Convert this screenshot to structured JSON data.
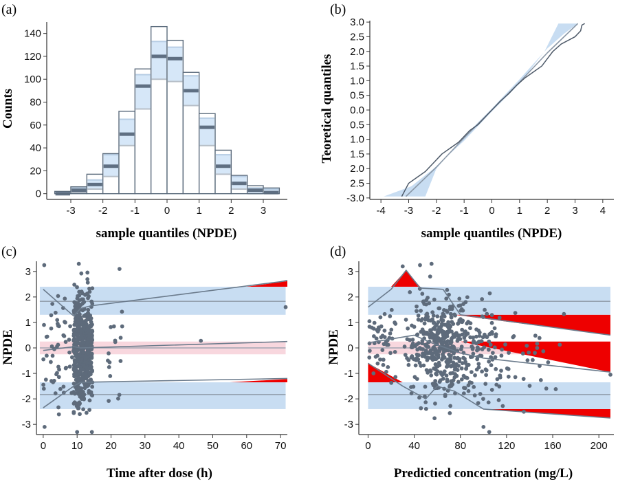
{
  "chart_data": [
    {
      "id": "a",
      "panel_label": "(a)",
      "type": "bar",
      "xlabel": "sample quantiles (NPDE)",
      "ylabel": "Counts",
      "xlim": [
        -3.75,
        3.75
      ],
      "ylim": [
        -5,
        150
      ],
      "x_ticks": [
        "-3",
        "-2",
        "-1",
        "0",
        "1",
        "2",
        "3"
      ],
      "y_ticks": [
        "0",
        "20",
        "40",
        "60",
        "80",
        "100",
        "120",
        "140"
      ],
      "bin_edges": [
        -3.5,
        -3.0,
        -2.5,
        -2.0,
        -1.5,
        -1.0,
        -0.5,
        0.0,
        0.5,
        1.0,
        1.5,
        2.0,
        2.5,
        3.0,
        3.5
      ],
      "series": [
        {
          "name": "observed counts",
          "values": [
            2,
            6,
            17,
            35,
            72,
            109,
            146,
            134,
            106,
            70,
            38,
            16,
            7,
            5
          ]
        },
        {
          "name": "band upper",
          "values": [
            1,
            5,
            12,
            34,
            65,
            104,
            133,
            128,
            103,
            66,
            34,
            15,
            5,
            4
          ]
        },
        {
          "name": "band lower",
          "values": [
            -1,
            1,
            4,
            15,
            42,
            74,
            100,
            98,
            77,
            42,
            17,
            4,
            0,
            0
          ]
        },
        {
          "name": "band median",
          "values": [
            0,
            3,
            8,
            24,
            52,
            94,
            120,
            118,
            90,
            58,
            24,
            9,
            3,
            1
          ]
        }
      ]
    },
    {
      "id": "b",
      "panel_label": "(b)",
      "type": "line",
      "xlabel": "sample quantiles (NPDE)",
      "ylabel": "Teoretical quantiles",
      "xlim": [
        -4.4,
        4.4
      ],
      "ylim": [
        -3.05,
        3.05
      ],
      "x_ticks": [
        "-4",
        "-3",
        "-2",
        "-1",
        "0",
        "1",
        "2",
        "3",
        "4"
      ],
      "y_ticks": [
        "-3.0",
        "2.5",
        "2.0",
        "1.5",
        "1.0",
        "0.5",
        "0.0",
        "0.5",
        "1.0",
        "1.5",
        "2.0",
        "2.5",
        "3.0"
      ],
      "series": [
        {
          "name": "band upper",
          "x": [
            -2.4,
            -2.0,
            -1.0,
            0.0,
            1.0,
            2.0,
            2.6,
            3.1,
            4.0
          ],
          "y": [
            -2.95,
            -2.0,
            -0.9,
            0.05,
            1.05,
            2.1,
            2.6,
            2.95,
            2.95
          ]
        },
        {
          "name": "band lower",
          "x": [
            -3.9,
            -2.9,
            -2.1,
            -1.0,
            0.0,
            1.0,
            1.9,
            2.4,
            2.5
          ],
          "y": [
            -2.95,
            -2.6,
            -2.0,
            -1.05,
            -0.05,
            0.9,
            2.0,
            2.95,
            2.95
          ]
        },
        {
          "name": "theoretical line",
          "x": [
            -3.1,
            -2.0,
            -1.0,
            0.0,
            1.0,
            2.0,
            3.1
          ],
          "y": [
            -2.95,
            -1.95,
            -0.95,
            0.0,
            0.95,
            1.95,
            2.95
          ]
        },
        {
          "name": "observed quantiles",
          "x": [
            -3.25,
            -3.0,
            -2.7,
            -2.4,
            -2.2,
            -2.0,
            -1.8,
            -1.5,
            -1.2,
            -1.0,
            -0.8,
            -0.5,
            -0.2,
            0.0,
            0.3,
            0.6,
            0.9,
            1.2,
            1.5,
            1.8,
            2.0,
            2.2,
            2.5,
            2.8,
            3.0,
            3.2,
            3.25,
            3.35
          ],
          "y": [
            -2.95,
            -2.5,
            -2.3,
            -2.1,
            -1.9,
            -1.7,
            -1.5,
            -1.3,
            -1.1,
            -0.9,
            -0.7,
            -0.5,
            -0.2,
            0.0,
            0.3,
            0.55,
            0.85,
            1.1,
            1.3,
            1.5,
            1.75,
            2.0,
            2.25,
            2.4,
            2.5,
            2.7,
            2.9,
            2.95
          ]
        }
      ]
    },
    {
      "id": "c",
      "panel_label": "(c)",
      "type": "scatter",
      "xlabel": "Time after dose (h)",
      "ylabel": "NPDE",
      "xlim": [
        -2,
        72
      ],
      "ylim": [
        -3.4,
        3.4
      ],
      "x_ticks": [
        "0",
        "10",
        "20",
        "30",
        "40",
        "50",
        "60",
        "70"
      ],
      "y_ticks": [
        "-3",
        "-2",
        "-1",
        "0",
        "1",
        "2",
        "3"
      ],
      "bands": [
        {
          "name": "upper band",
          "lower": 1.3,
          "upper": 2.4
        },
        {
          "name": "median band",
          "lower": -0.25,
          "upper": 0.25
        },
        {
          "name": "lower band",
          "lower": -2.4,
          "upper": -1.35
        }
      ],
      "reference_lines": [
        1.83,
        0.0,
        -1.83
      ],
      "series": [
        {
          "name": "upper percentile",
          "x": [
            0,
            9,
            11,
            14,
            70,
            72
          ],
          "y": [
            2.3,
            1.25,
            1.55,
            1.65,
            2.6,
            2.65
          ]
        },
        {
          "name": "median",
          "x": [
            0,
            9,
            11,
            72
          ],
          "y": [
            -0.1,
            0.05,
            0.0,
            0.25
          ]
        },
        {
          "name": "lower percentile",
          "x": [
            0,
            9,
            11,
            72
          ],
          "y": [
            -2.35,
            -1.5,
            -1.35,
            -1.2
          ]
        }
      ],
      "red_regions": [
        {
          "x": [
            60,
            72,
            72
          ],
          "y": [
            2.4,
            2.4,
            2.62
          ]
        },
        {
          "x": [
            55,
            72,
            72
          ],
          "y": [
            -1.35,
            -1.35,
            -1.22
          ]
        }
      ]
    },
    {
      "id": "d",
      "panel_label": "(d)",
      "type": "scatter",
      "xlabel": "Predictied concentration (mg/L)",
      "ylabel": "NPDE",
      "xlim": [
        -8,
        213
      ],
      "ylim": [
        -3.4,
        3.4
      ],
      "x_ticks": [
        "0",
        "40",
        "80",
        "120",
        "160",
        "200"
      ],
      "y_ticks": [
        "-3",
        "-2",
        "-1",
        "0",
        "1",
        "2",
        "3"
      ],
      "bands": [
        {
          "name": "upper band",
          "lower": 1.3,
          "upper": 2.4
        },
        {
          "name": "median band",
          "lower": -0.25,
          "upper": 0.25
        },
        {
          "name": "lower band",
          "lower": -2.4,
          "upper": -1.35
        }
      ],
      "reference_lines": [
        1.83,
        0.0,
        -1.83
      ],
      "series": [
        {
          "name": "upper percentile",
          "x": [
            0,
            20,
            33,
            45,
            65,
            80,
            210
          ],
          "y": [
            1.6,
            2.3,
            3.05,
            2.35,
            2.3,
            1.3,
            0.5
          ]
        },
        {
          "name": "median",
          "x": [
            0,
            20,
            40,
            55,
            80,
            100,
            210
          ],
          "y": [
            0.2,
            0.35,
            0.5,
            0.2,
            -0.2,
            -0.4,
            -0.95
          ]
        },
        {
          "name": "lower percentile",
          "x": [
            0,
            30,
            50,
            60,
            75,
            100,
            210
          ],
          "y": [
            -0.6,
            -1.5,
            -2.0,
            -1.5,
            -1.7,
            -2.4,
            -2.75
          ]
        }
      ],
      "red_regions": [
        {
          "x": [
            20,
            33,
            45
          ],
          "y": [
            2.4,
            3.05,
            2.4
          ]
        },
        {
          "x": [
            75,
            210,
            210
          ],
          "y": [
            1.3,
            1.3,
            0.5
          ]
        },
        {
          "x": [
            80,
            210,
            210
          ],
          "y": [
            0.25,
            0.25,
            -0.95
          ]
        },
        {
          "x": [
            0,
            30,
            0
          ],
          "y": [
            -1.35,
            -1.35,
            -0.6
          ]
        },
        {
          "x": [
            100,
            210,
            210
          ],
          "y": [
            -2.4,
            -2.4,
            -2.75
          ]
        }
      ]
    }
  ],
  "colors": {
    "band_blue": "#c8ddf2",
    "band_pink": "#f8d7de",
    "red": "#ee0000",
    "line_grey": "#6b7b8c",
    "point_grey": "#5e6b7b",
    "bar_edge": "#5b6b7c"
  }
}
